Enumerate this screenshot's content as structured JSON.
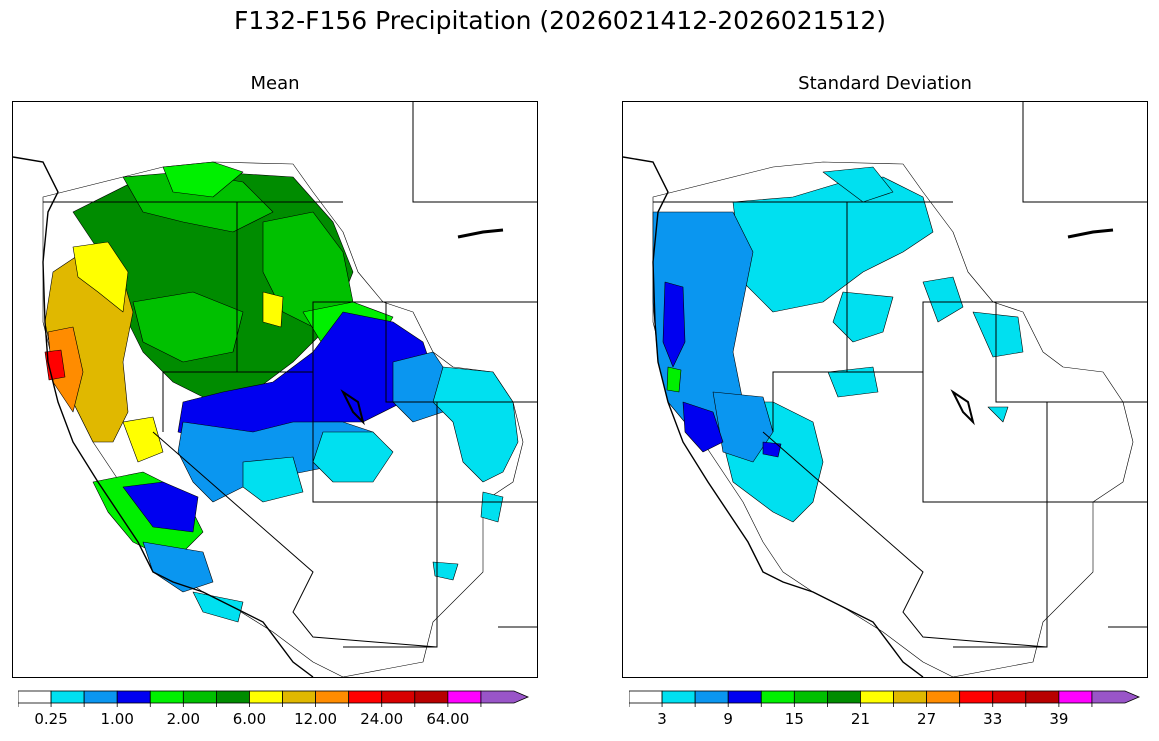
{
  "title": "F132-F156 Precipitation (2026021412-2026021512)",
  "panels": [
    {
      "title": "Mean",
      "colorbar": {
        "colors": [
          "#ffffff",
          "#00e0f0",
          "#0a96f0",
          "#0000f0",
          "#00f000",
          "#00c000",
          "#008c00",
          "#ffff00",
          "#e0b800",
          "#ff8c00",
          "#ff0000",
          "#d80000",
          "#b80000",
          "#ff00ff",
          "#9955c8"
        ],
        "tick_labels": [
          "0.25",
          "1.00",
          "2.00",
          "6.00",
          "12.00",
          "24.00",
          "64.00"
        ],
        "extend": "max"
      }
    },
    {
      "title": "Standard Deviation",
      "colorbar": {
        "colors": [
          "#ffffff",
          "#00e0f0",
          "#0a96f0",
          "#0000f0",
          "#00f000",
          "#00c000",
          "#008c00",
          "#ffff00",
          "#e0b800",
          "#ff8c00",
          "#ff0000",
          "#d80000",
          "#b80000",
          "#ff00ff",
          "#9955c8"
        ],
        "tick_labels": [
          "3",
          "9",
          "15",
          "21",
          "27",
          "33",
          "39"
        ],
        "extend": "max"
      }
    }
  ]
}
